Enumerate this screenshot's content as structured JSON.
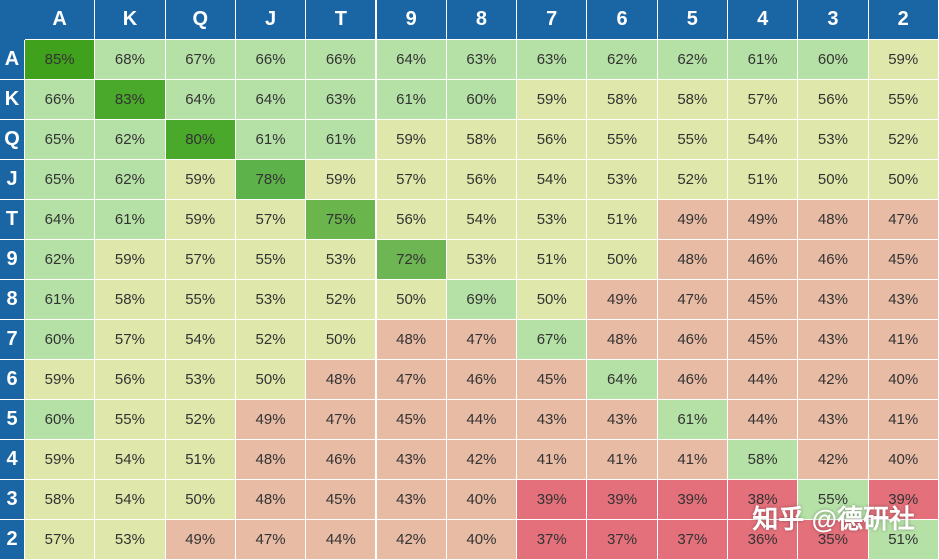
{
  "chart_data": {
    "type": "heatmap",
    "columns": [
      "A",
      "K",
      "Q",
      "J",
      "T",
      "9",
      "8",
      "7",
      "6",
      "5",
      "4",
      "3",
      "2"
    ],
    "rows": [
      "A",
      "K",
      "Q",
      "J",
      "T",
      "9",
      "8",
      "7",
      "6",
      "5",
      "4",
      "3",
      "2"
    ],
    "unit": "%",
    "values": [
      [
        85,
        68,
        67,
        66,
        66,
        64,
        63,
        63,
        62,
        62,
        61,
        60,
        59
      ],
      [
        66,
        83,
        64,
        64,
        63,
        61,
        60,
        59,
        58,
        58,
        57,
        56,
        55
      ],
      [
        65,
        62,
        80,
        61,
        61,
        59,
        58,
        56,
        55,
        55,
        54,
        53,
        52
      ],
      [
        65,
        62,
        59,
        78,
        59,
        57,
        56,
        54,
        53,
        52,
        51,
        50,
        50
      ],
      [
        64,
        61,
        59,
        57,
        75,
        56,
        54,
        53,
        51,
        49,
        49,
        48,
        47
      ],
      [
        62,
        59,
        57,
        55,
        53,
        72,
        53,
        51,
        50,
        48,
        46,
        46,
        45
      ],
      [
        61,
        58,
        55,
        53,
        52,
        50,
        69,
        50,
        49,
        47,
        45,
        43,
        43
      ],
      [
        60,
        57,
        54,
        52,
        50,
        48,
        47,
        67,
        48,
        46,
        45,
        43,
        41
      ],
      [
        59,
        56,
        53,
        50,
        48,
        47,
        46,
        45,
        64,
        46,
        44,
        42,
        40
      ],
      [
        60,
        55,
        52,
        49,
        47,
        45,
        44,
        43,
        43,
        61,
        44,
        43,
        41
      ],
      [
        59,
        54,
        51,
        48,
        46,
        43,
        42,
        41,
        41,
        41,
        58,
        42,
        40
      ],
      [
        58,
        54,
        50,
        48,
        45,
        43,
        40,
        39,
        39,
        39,
        38,
        55,
        39
      ],
      [
        57,
        53,
        49,
        47,
        44,
        42,
        40,
        37,
        37,
        37,
        36,
        35,
        51
      ]
    ],
    "colors": {
      "header": "#1a65a3",
      "diag_85": "#3fa11c",
      "diag_80": "#4aa82a",
      "diag_78": "#5eb24a",
      "diag_75": "#6ab54c",
      "diag_72": "#6eb653",
      "light_green": "#b5e1a6",
      "yellow": "#dfe8aa",
      "salmon": "#e8bba5",
      "red": "#e3707a"
    }
  },
  "watermark": "知乎 @德研社"
}
